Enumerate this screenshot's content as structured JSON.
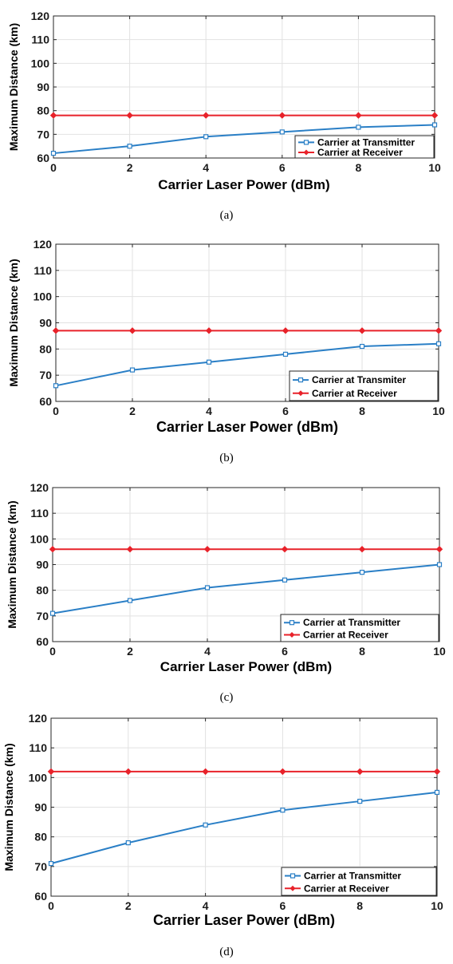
{
  "chart_data": [
    {
      "type": "line",
      "panel_label": "(a)",
      "xlabel": "Carrier Laser Power (dBm)",
      "ylabel": "Maximum Distance (km)",
      "xlim": [
        0,
        10
      ],
      "ylim": [
        60,
        120
      ],
      "xticks": [
        0,
        2,
        4,
        6,
        8,
        10
      ],
      "yticks": [
        60,
        70,
        80,
        90,
        100,
        110,
        120
      ],
      "grid": true,
      "legend_position": "bottom-right",
      "x": [
        0,
        2,
        4,
        6,
        8,
        10
      ],
      "series": [
        {
          "name": "Carrier at Transmitter",
          "color": "#2a7fc6",
          "marker": "square",
          "values": [
            62,
            65,
            69,
            71,
            73,
            74
          ]
        },
        {
          "name": "Carrier at Receiver",
          "color": "#e8222a",
          "marker": "diamond",
          "values": [
            78,
            78,
            78,
            78,
            78,
            78
          ]
        }
      ]
    },
    {
      "type": "line",
      "panel_label": "(b)",
      "xlabel": "Carrier Laser Power (dBm)",
      "ylabel": "Maximum Distance (km)",
      "xlim": [
        0,
        10
      ],
      "ylim": [
        60,
        120
      ],
      "xticks": [
        0,
        2,
        4,
        6,
        8,
        10
      ],
      "yticks": [
        60,
        70,
        80,
        90,
        100,
        110,
        120
      ],
      "grid": true,
      "legend_position": "bottom-right",
      "x": [
        0,
        2,
        4,
        6,
        8,
        10
      ],
      "series": [
        {
          "name": "Carrier at Transmiter",
          "color": "#2a7fc6",
          "marker": "square",
          "values": [
            66,
            72,
            75,
            78,
            81,
            82
          ]
        },
        {
          "name": "Carrier at Receiver",
          "color": "#e8222a",
          "marker": "diamond",
          "values": [
            87,
            87,
            87,
            87,
            87,
            87
          ]
        }
      ]
    },
    {
      "type": "line",
      "panel_label": "(c)",
      "xlabel": "Carrier Laser Power (dBm)",
      "ylabel": "Maximum Distance (km)",
      "xlim": [
        0,
        10
      ],
      "ylim": [
        60,
        120
      ],
      "xticks": [
        0,
        2,
        4,
        6,
        8,
        10
      ],
      "yticks": [
        60,
        70,
        80,
        90,
        100,
        110,
        120
      ],
      "grid": true,
      "legend_position": "bottom-right",
      "x": [
        0,
        2,
        4,
        6,
        8,
        10
      ],
      "series": [
        {
          "name": "Carrier at Transmitter",
          "color": "#2a7fc6",
          "marker": "square",
          "values": [
            71,
            76,
            81,
            84,
            87,
            90
          ]
        },
        {
          "name": "Carrier at Receiver",
          "color": "#e8222a",
          "marker": "diamond",
          "values": [
            96,
            96,
            96,
            96,
            96,
            96
          ]
        }
      ]
    },
    {
      "type": "line",
      "panel_label": "(d)",
      "xlabel": "Carrier Laser Power (dBm)",
      "ylabel": "Maximum Distance (km)",
      "xlim": [
        0,
        10
      ],
      "ylim": [
        60,
        120
      ],
      "xticks": [
        0,
        2,
        4,
        6,
        8,
        10
      ],
      "yticks": [
        60,
        70,
        80,
        90,
        100,
        110,
        120
      ],
      "grid": true,
      "legend_position": "bottom-right",
      "x": [
        0,
        2,
        4,
        6,
        8,
        10
      ],
      "series": [
        {
          "name": "Carrier at Transmitter",
          "color": "#2a7fc6",
          "marker": "square",
          "values": [
            71,
            78,
            84,
            89,
            92,
            95
          ]
        },
        {
          "name": "Carrier at Receiver",
          "color": "#e8222a",
          "marker": "diamond",
          "values": [
            102,
            102,
            102,
            102,
            102,
            102
          ]
        }
      ]
    }
  ]
}
